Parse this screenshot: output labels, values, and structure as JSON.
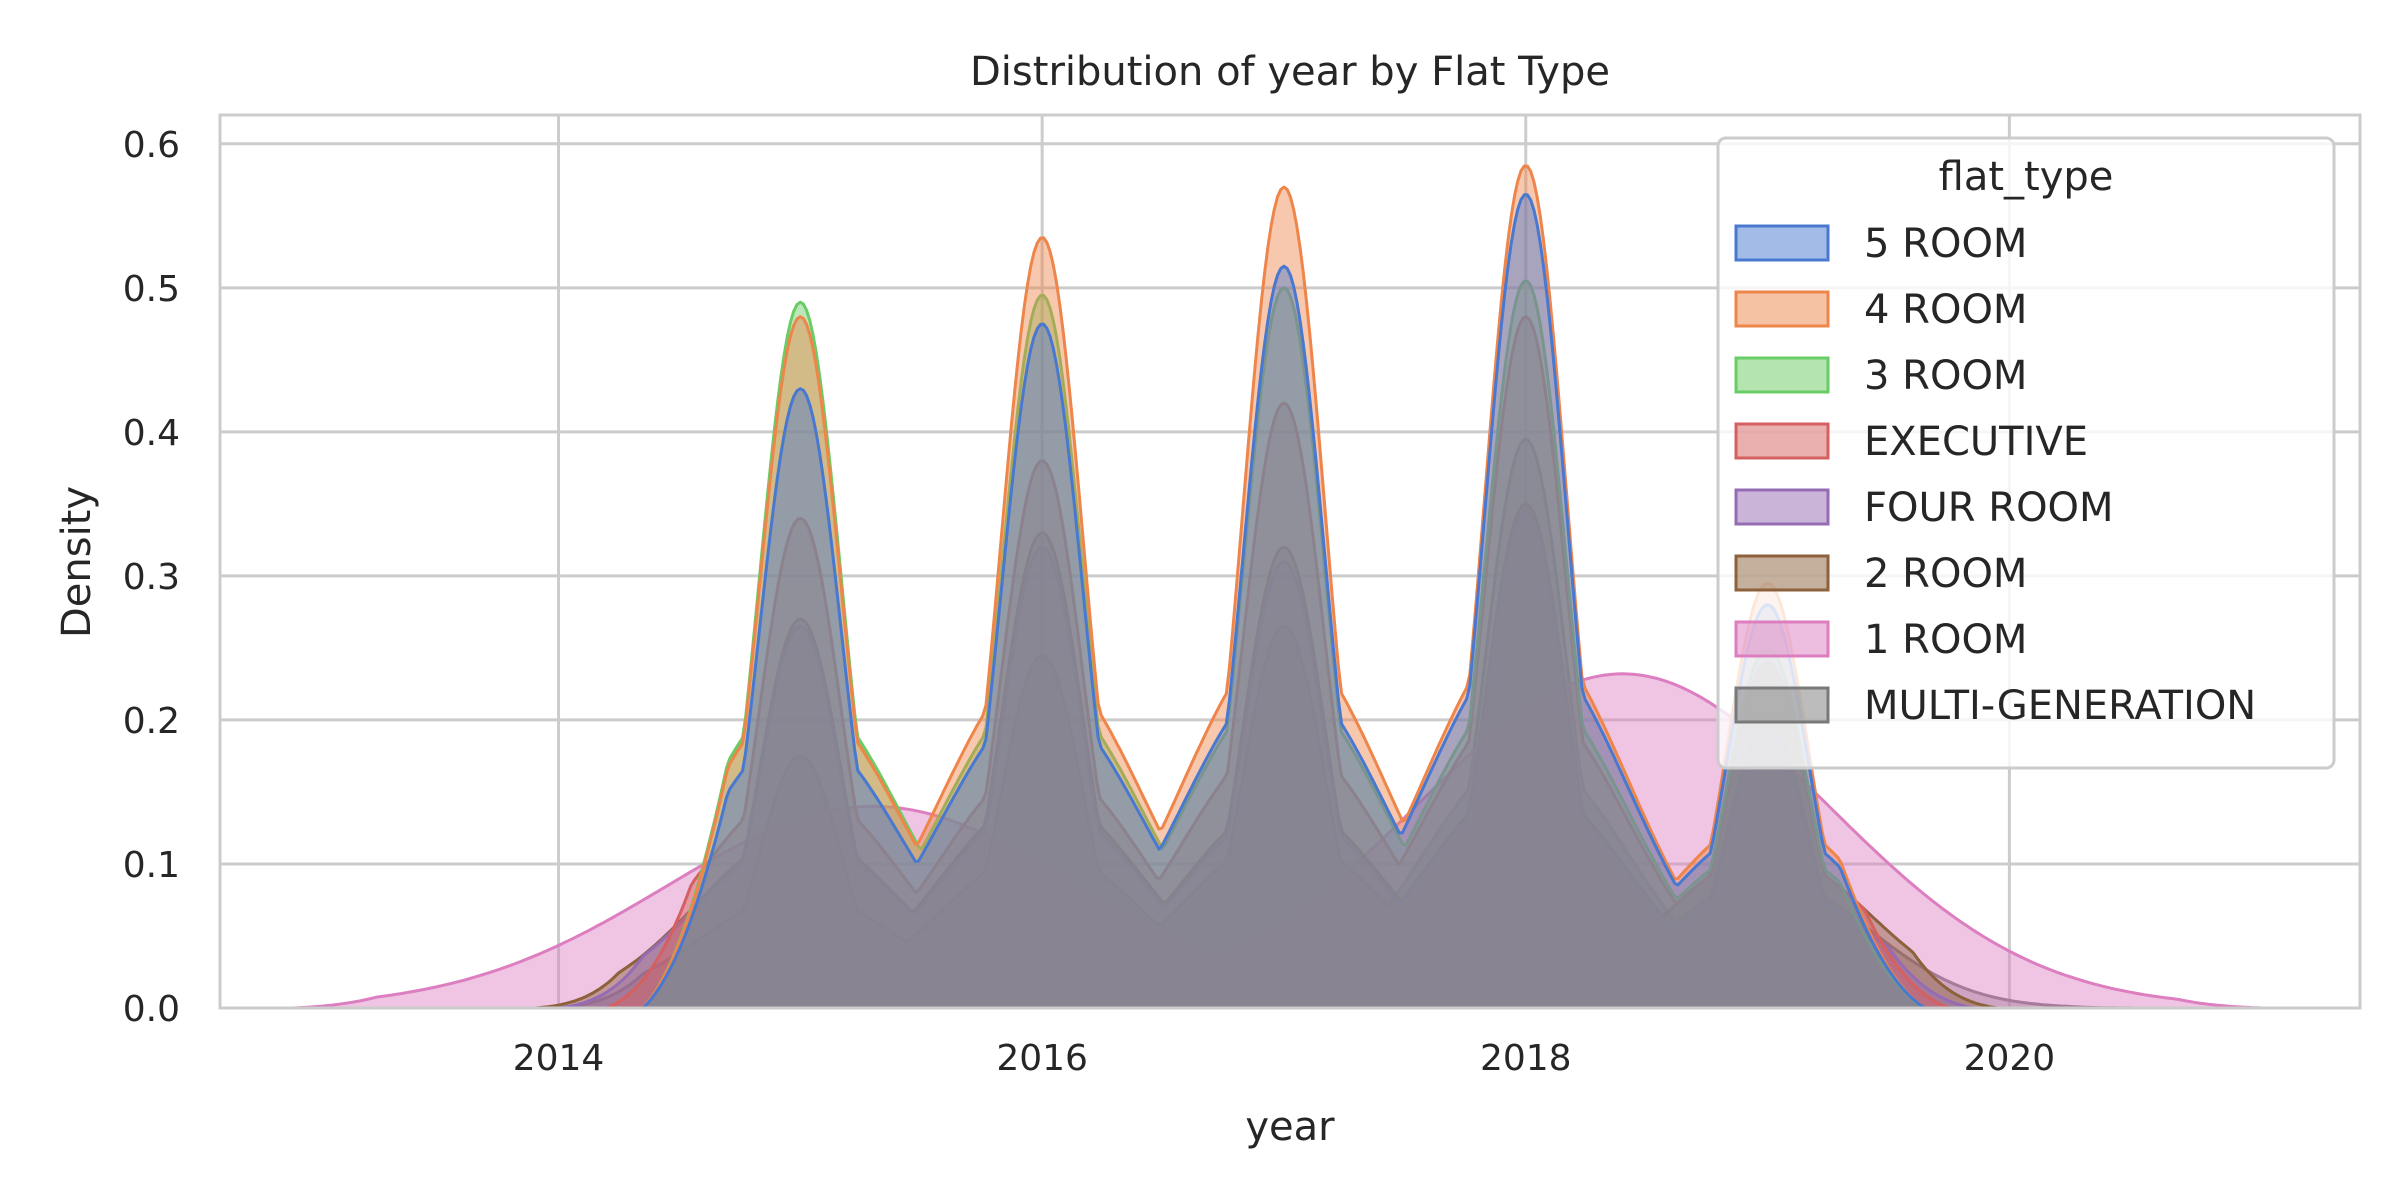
{
  "chart_data": {
    "type": "area",
    "title": "Distribution of year by Flat Type",
    "xlabel": "year",
    "ylabel": "Density",
    "xlim": [
      2012.6,
      2021.45
    ],
    "ylim": [
      0,
      0.62
    ],
    "xticks": [
      2014,
      2016,
      2018,
      2020
    ],
    "xtick_labels": [
      "2014",
      "2016",
      "2018",
      "2020"
    ],
    "yticks": [
      0.0,
      0.1,
      0.2,
      0.3,
      0.4,
      0.5,
      0.6
    ],
    "ytick_labels": [
      "0.0",
      "0.1",
      "0.2",
      "0.3",
      "0.4",
      "0.5",
      "0.6"
    ],
    "grid": true,
    "legend": {
      "title": "flat_type",
      "placement": "top-right"
    },
    "series": [
      {
        "name": "5 ROOM",
        "color": "#4878d0",
        "x_range": [
          2014.35,
          2019.65
        ],
        "peaks": [
          {
            "year": 2015,
            "density": 0.43
          },
          {
            "year": 2016,
            "density": 0.475
          },
          {
            "year": 2017,
            "density": 0.515
          },
          {
            "year": 2018,
            "density": 0.565
          },
          {
            "year": 2019,
            "density": 0.28
          }
        ]
      },
      {
        "name": "4 ROOM",
        "color": "#ee854a",
        "x_range": [
          2014.35,
          2019.65
        ],
        "peaks": [
          {
            "year": 2015,
            "density": 0.48
          },
          {
            "year": 2016,
            "density": 0.535
          },
          {
            "year": 2017,
            "density": 0.57
          },
          {
            "year": 2018,
            "density": 0.585
          },
          {
            "year": 2019,
            "density": 0.295
          }
        ]
      },
      {
        "name": "3 ROOM",
        "color": "#6acc64",
        "x_range": [
          2014.35,
          2019.65
        ],
        "peaks": [
          {
            "year": 2015,
            "density": 0.49
          },
          {
            "year": 2016,
            "density": 0.495
          },
          {
            "year": 2017,
            "density": 0.5
          },
          {
            "year": 2018,
            "density": 0.505
          },
          {
            "year": 2019,
            "density": 0.25
          }
        ]
      },
      {
        "name": "EXECUTIVE",
        "color": "#d65f5f",
        "x_range": [
          2014.2,
          2019.75
        ],
        "peaks": [
          {
            "year": 2015,
            "density": 0.34
          },
          {
            "year": 2016,
            "density": 0.38
          },
          {
            "year": 2017,
            "density": 0.42
          },
          {
            "year": 2018,
            "density": 0.48
          },
          {
            "year": 2019,
            "density": 0.24
          }
        ]
      },
      {
        "name": "FOUR ROOM",
        "color": "#956cb4",
        "x_range": [
          2014.0,
          2019.85
        ],
        "peaks": [
          {
            "year": 2015,
            "density": 0.265
          },
          {
            "year": 2016,
            "density": 0.32
          },
          {
            "year": 2017,
            "density": 0.31
          },
          {
            "year": 2018,
            "density": 0.345
          },
          {
            "year": 2019,
            "density": 0.19
          }
        ]
      },
      {
        "name": "2 ROOM",
        "color": "#8c613c",
        "x_range": [
          2013.9,
          2019.95
        ],
        "peaks": [
          {
            "year": 2015,
            "density": 0.27
          },
          {
            "year": 2016,
            "density": 0.33
          },
          {
            "year": 2017,
            "density": 0.32
          },
          {
            "year": 2018,
            "density": 0.35
          },
          {
            "year": 2019,
            "density": 0.24
          }
        ]
      },
      {
        "name": "1 ROOM",
        "color": "#dc7ec0",
        "x_range": [
          2012.9,
          2021.05
        ],
        "peaks": [
          {
            "year": 2015.3,
            "density": 0.14
          },
          {
            "year": 2018.4,
            "density": 0.232
          }
        ]
      },
      {
        "name": "MULTI-GENERATION",
        "color": "#797979",
        "x_range": [
          2014.0,
          2020.6
        ],
        "peaks": [
          {
            "year": 2015,
            "density": 0.175
          },
          {
            "year": 2016,
            "density": 0.245
          },
          {
            "year": 2017,
            "density": 0.265
          },
          {
            "year": 2018,
            "density": 0.395
          },
          {
            "year": 2019,
            "density": 0.2
          }
        ]
      }
    ]
  }
}
